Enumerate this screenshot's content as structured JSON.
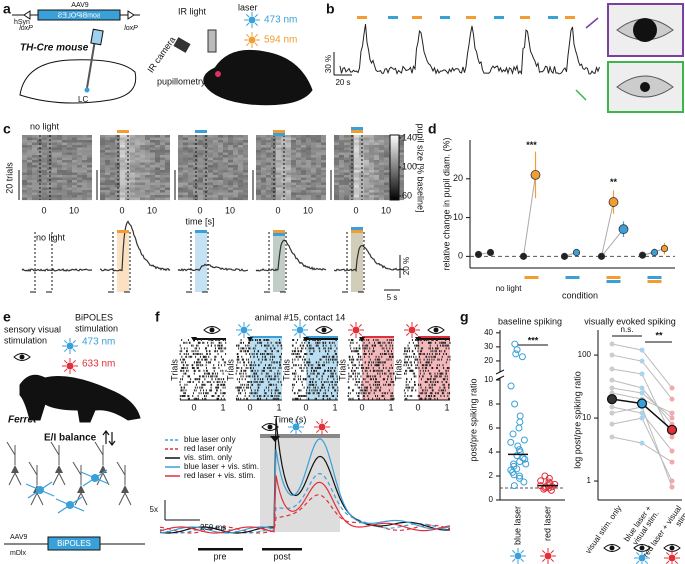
{
  "panels": {
    "a": {
      "letter": "a",
      "hsyn": "hSyn",
      "aav": "AAV9",
      "loxp1": "loxP",
      "loxp2": "loxP",
      "construct": "somBiPOLES",
      "mouse": "TH-Cre mouse",
      "lc": "LC",
      "ir_light": "IR light",
      "laser": "laser",
      "blue_nm": "473 nm",
      "orange_nm": "594 nm",
      "camera": "IR camera",
      "pupillometry": "pupillometry"
    },
    "b": {
      "letter": "b",
      "scale_y": "30 %",
      "scale_x": "20 s"
    },
    "c": {
      "letter": "c",
      "no_light_top": "no light",
      "trials": "20 trials",
      "ticks": [
        "0",
        "10"
      ],
      "xlabel": "time [s]",
      "cbar_label": "pupil size [% baseline]",
      "cbar_ticks": [
        140,
        100,
        60
      ],
      "no_light_bottom": "no light",
      "scale_y": "20 %",
      "scale_x": "5 s"
    },
    "e": {
      "letter": "e",
      "visual": "sensory visual",
      "visual2": "stimulation",
      "bipoles": "BiPOLES",
      "bipoles2": "stimulation",
      "blue_nm": "473 nm",
      "red_nm": "633 nm",
      "ferret": "Ferret",
      "ei": "E/I balance",
      "aav": "AAV9",
      "mdlx": "mDlx",
      "construct": "BiPOLES"
    },
    "f": {
      "letter": "f",
      "title": "animal #15, contact 14",
      "trials": "Trials",
      "ticks": [
        "0",
        "1"
      ],
      "xlabel": "Time (s)",
      "legend": [
        {
          "name": "blue laser only",
          "color": "#3aa0d8",
          "dash": true
        },
        {
          "name": "red laser only",
          "color": "#e0303a",
          "dash": true
        },
        {
          "name": "vis. stim. only",
          "color": "#111111",
          "dash": false
        },
        {
          "name": "blue laser + vis. stim.",
          "color": "#3aa0d8",
          "dash": false
        },
        {
          "name": "red laser + vis. stim.",
          "color": "#e0303a",
          "dash": false
        }
      ],
      "scale_y": "5x",
      "scale_x": "250 ms",
      "pre": "pre",
      "post": "post"
    }
  },
  "chart_data": [
    {
      "type": "dot",
      "letter": "d",
      "ylabel": "relative change in pupil diam. (%)",
      "xlabel": "condition",
      "categories": [
        "no light",
        null,
        null,
        null,
        null
      ],
      "series": [
        {
          "color": "#222222",
          "values": [
            0.5,
            0,
            0,
            0,
            0.3
          ]
        },
        {
          "color": "#222222",
          "values": [
            1,
            null,
            null,
            null,
            null
          ]
        },
        {
          "color": "#f39c32",
          "values": [
            null,
            21,
            null,
            14,
            2
          ],
          "errors": [
            null,
            6,
            null,
            3,
            1.5
          ]
        },
        {
          "color": "#3aa0d8",
          "values": [
            null,
            null,
            1,
            7,
            1
          ],
          "errors": [
            null,
            null,
            0.5,
            2,
            1
          ]
        }
      ],
      "ylim": [
        -3,
        30
      ],
      "yticks": [
        0,
        10,
        20
      ],
      "annotations": [
        "***",
        "**"
      ]
    },
    {
      "type": "strip",
      "letter": "g",
      "title": "baseline spiking",
      "ylabel": "post/pre spiking ratio",
      "categories": [
        "blue laser",
        "red laser"
      ],
      "series": [
        {
          "color": "#3aa0d8",
          "values": [
            1.2,
            1.5,
            1.8,
            2,
            2.1,
            2.3,
            2.5,
            2.6,
            2.8,
            3,
            3,
            3.2,
            3.4,
            3.5,
            3.7,
            4,
            4.2,
            4.5,
            4.8,
            5,
            5.5,
            6,
            6.5,
            7,
            8,
            9.5,
            23,
            25,
            28,
            32
          ]
        },
        {
          "color": "#e0303a",
          "values": [
            0.8,
            0.9,
            1,
            1,
            1.1,
            1.1,
            1.2,
            1.2,
            1.3,
            1.4,
            1.5,
            1.6,
            1.8,
            2
          ]
        }
      ],
      "means": [
        3.8,
        1.2
      ],
      "ylim": [
        0,
        42
      ],
      "yticks": [
        0,
        2,
        4,
        6,
        8,
        10,
        20,
        30,
        40
      ],
      "annotation": "***"
    },
    {
      "type": "line",
      "title": "visually evoked spiking",
      "ylabel": "log post/pre spiking ratio",
      "categories": [
        "visual stim. only",
        "blue laser + visual stim.",
        "red laser + visual stim."
      ],
      "values": [
        20,
        17,
        6.5
      ],
      "colors": [
        "#333333",
        "#3aa0d8",
        "#e0303a"
      ],
      "lines": [
        [
          40,
          30,
          8
        ],
        [
          15,
          12,
          3
        ],
        [
          100,
          80,
          20
        ],
        [
          8,
          10,
          1
        ],
        [
          25,
          20,
          12
        ],
        [
          60,
          50,
          5
        ],
        [
          5,
          4,
          2
        ],
        [
          150,
          120,
          30
        ],
        [
          12,
          15,
          0.8
        ],
        [
          30,
          25,
          10
        ]
      ],
      "log": true,
      "ylim": [
        0.5,
        250
      ],
      "yticks": [
        1,
        10,
        100
      ],
      "annotations": [
        "n.s.",
        "**"
      ]
    }
  ]
}
